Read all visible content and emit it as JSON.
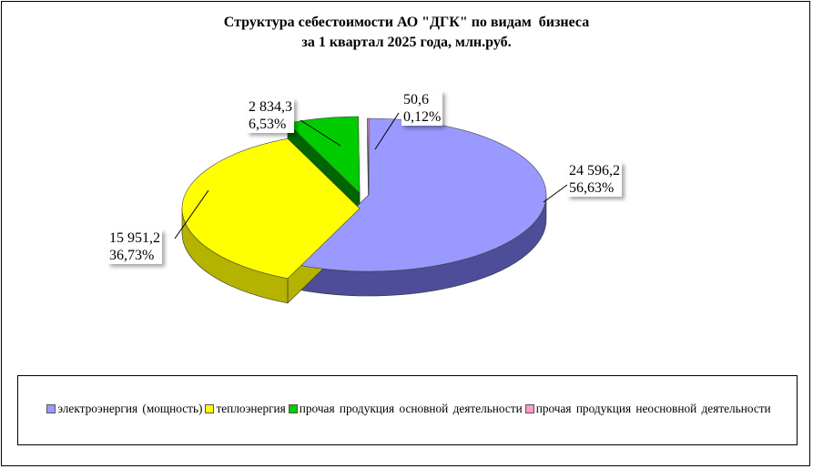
{
  "title_lines": [
    "Структура себестоимости АО \"ДГК\" по видам  бизнеса",
    "за 1 квартал 2025 года, млн.руб."
  ],
  "chart_data": {
    "type": "pie",
    "title": "Структура себестоимости АО \"ДГК\" по видам  бизнеса за 1 квартал 2025 года, млн.руб.",
    "three_d": true,
    "exploded": true,
    "legend_position": "bottom",
    "categories": [
      "электроэнергия (мощность)",
      "теплоэнергия",
      "прочая продукция  основной  деятельности",
      "прочая продукция  неосновной  деятельности"
    ],
    "values": [
      24596.2,
      15951.2,
      2834.3,
      50.6
    ],
    "value_labels": [
      "24 596,2",
      "15 951,2",
      "2 834,3",
      "50,6"
    ],
    "percent_labels": [
      "56,63%",
      "36,73%",
      "6,53%",
      "0,12%"
    ],
    "colors": [
      "#9999ff",
      "#ffff00",
      "#00cc00",
      "#ff99cc"
    ],
    "side_colors": [
      "#4d4d99",
      "#b3b300",
      "#006600",
      "#994d73"
    ]
  }
}
